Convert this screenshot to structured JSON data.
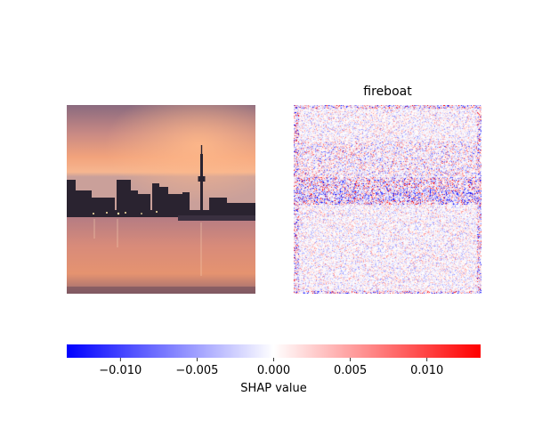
{
  "chart_data": {
    "type": "heatmap",
    "panels": [
      {
        "kind": "image",
        "title": "",
        "description": "photo"
      },
      {
        "kind": "shap_heatmap",
        "title": "fireboat"
      }
    ],
    "colorbar": {
      "label": "SHAP value",
      "cmap": [
        "#0000ff",
        "#ffffff",
        "#ff0000"
      ],
      "range": [
        -0.0135,
        0.0135
      ],
      "ticks": [
        -0.01,
        -0.005,
        0.0,
        0.005,
        0.01
      ],
      "tick_labels": [
        "−0.010",
        "−0.005",
        "0.000",
        "0.005",
        "0.010"
      ]
    }
  },
  "colors": {
    "negative": "#0000ff",
    "neutral": "#ffffff",
    "positive": "#ff0000"
  }
}
